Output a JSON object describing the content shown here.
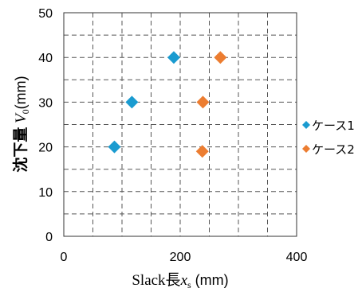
{
  "chart_data": {
    "type": "scatter",
    "title": "",
    "xlabel": {
      "prefix": "Slack長",
      "symbol": "x",
      "subscript": "s",
      "unit": " (mm)"
    },
    "ylabel": {
      "prefix": "沈下量 ",
      "symbol": "V",
      "subscript": "0",
      "unit": "(mm)"
    },
    "xlim": [
      0,
      400
    ],
    "ylim": [
      0,
      50
    ],
    "xticks": [
      0,
      200,
      400
    ],
    "yticks": [
      0,
      10,
      20,
      30,
      40,
      50
    ],
    "x_minor_step": 50,
    "y_minor_step": 5,
    "grid": true,
    "legend_position": "right",
    "series": [
      {
        "name": "ケース1",
        "color": "#1a9bd0",
        "marker": "diamond",
        "points": [
          [
            87,
            20
          ],
          [
            117,
            30
          ],
          [
            189,
            40
          ]
        ]
      },
      {
        "name": "ケース2",
        "color": "#ec7d31",
        "marker": "diamond",
        "points": [
          [
            238,
            19
          ],
          [
            239,
            30
          ],
          [
            269,
            40
          ]
        ]
      }
    ]
  }
}
